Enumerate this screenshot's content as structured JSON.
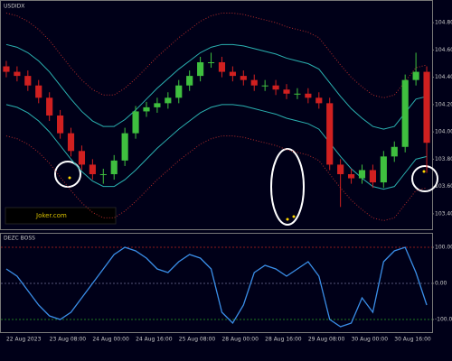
{
  "chart_data": [
    {
      "type": "candlestick",
      "title": "USDIDX",
      "watermark": "Joker.com",
      "categories": [
        "22 Aug 2023",
        null,
        null,
        null,
        "23 Aug 08:00",
        null,
        null,
        null,
        "24 Aug 00:00",
        null,
        null,
        null,
        "24 Aug 16:00",
        null,
        null,
        null,
        "25 Aug 08:00",
        null,
        null,
        null,
        "28 Aug 00:00",
        null,
        null,
        null,
        "28 Aug 16:00",
        null,
        null,
        null,
        "29 Aug 08:00",
        null,
        null,
        null,
        "30 Aug 00:00",
        null,
        null,
        null,
        "30 Aug 16:00",
        null,
        null,
        null
      ],
      "opens": [
        104.48,
        104.44,
        104.41,
        104.34,
        104.25,
        104.12,
        103.99,
        103.86,
        103.76,
        103.69,
        103.69,
        103.79,
        103.99,
        104.15,
        104.18,
        104.21,
        104.25,
        104.34,
        104.41,
        104.51,
        104.51,
        104.44,
        104.41,
        104.38,
        104.34,
        104.34,
        104.31,
        104.28,
        104.28,
        104.25,
        104.21,
        103.76,
        103.69,
        103.66,
        103.72,
        103.63,
        103.82,
        103.89,
        104.38,
        104.44
      ],
      "highs": [
        104.52,
        104.48,
        104.45,
        104.38,
        104.29,
        104.16,
        104.03,
        103.9,
        103.8,
        103.73,
        103.83,
        104.03,
        104.19,
        104.22,
        104.25,
        104.29,
        104.38,
        104.45,
        104.55,
        104.58,
        104.55,
        104.48,
        104.45,
        104.42,
        104.38,
        104.38,
        104.35,
        104.32,
        104.32,
        104.29,
        104.25,
        103.8,
        103.73,
        103.76,
        103.76,
        103.86,
        103.93,
        104.42,
        104.58,
        104.48
      ],
      "lows": [
        104.4,
        104.37,
        104.3,
        104.21,
        104.08,
        103.95,
        103.82,
        103.72,
        103.65,
        103.62,
        103.65,
        103.75,
        103.95,
        104.11,
        104.14,
        104.17,
        104.21,
        104.3,
        104.37,
        104.47,
        104.4,
        104.37,
        104.34,
        104.3,
        104.3,
        104.27,
        104.24,
        104.24,
        104.21,
        104.17,
        103.72,
        103.45,
        103.62,
        103.62,
        103.59,
        103.59,
        103.78,
        103.85,
        104.34,
        103.7
      ],
      "closes": [
        104.44,
        104.41,
        104.34,
        104.25,
        104.12,
        103.99,
        103.86,
        103.76,
        103.69,
        103.69,
        103.79,
        103.99,
        104.15,
        104.18,
        104.21,
        104.25,
        104.34,
        104.41,
        104.51,
        104.51,
        104.44,
        104.41,
        104.38,
        104.34,
        104.34,
        104.31,
        104.28,
        104.28,
        104.25,
        104.21,
        103.76,
        103.69,
        103.66,
        103.72,
        103.63,
        103.82,
        103.89,
        104.38,
        104.44,
        103.92
      ],
      "up_color": "#3fbf3f",
      "down_color": "#d02020",
      "series": [
        {
          "color": "#2ab0b0",
          "style": "solid",
          "values": [
            104.64,
            104.62,
            104.58,
            104.52,
            104.44,
            104.34,
            104.24,
            104.15,
            104.08,
            104.04,
            104.04,
            104.09,
            104.16,
            104.24,
            104.32,
            104.39,
            104.46,
            104.52,
            104.58,
            104.62,
            104.64,
            104.64,
            104.63,
            104.61,
            104.59,
            104.57,
            104.54,
            104.52,
            104.5,
            104.46,
            104.36,
            104.26,
            104.17,
            104.1,
            104.04,
            104.02,
            104.04,
            104.14,
            104.24,
            104.26
          ]
        },
        {
          "color": "#2ab0b0",
          "style": "solid",
          "values": [
            104.2,
            104.18,
            104.14,
            104.08,
            104.0,
            103.9,
            103.8,
            103.71,
            103.64,
            103.6,
            103.6,
            103.65,
            103.72,
            103.8,
            103.88,
            103.95,
            104.02,
            104.08,
            104.14,
            104.18,
            104.2,
            104.2,
            104.19,
            104.17,
            104.15,
            104.13,
            104.1,
            104.08,
            104.06,
            104.02,
            103.92,
            103.82,
            103.73,
            103.66,
            103.6,
            103.58,
            103.6,
            103.7,
            103.8,
            103.82
          ]
        },
        {
          "color": "#b02a2a",
          "style": "dotted",
          "values": [
            104.87,
            104.85,
            104.81,
            104.75,
            104.67,
            104.57,
            104.47,
            104.38,
            104.31,
            104.27,
            104.27,
            104.32,
            104.39,
            104.47,
            104.55,
            104.62,
            104.69,
            104.75,
            104.81,
            104.85,
            104.87,
            104.87,
            104.86,
            104.84,
            104.82,
            104.8,
            104.77,
            104.75,
            104.73,
            104.69,
            104.59,
            104.49,
            104.4,
            104.33,
            104.27,
            104.25,
            104.27,
            104.37,
            104.47,
            104.49
          ]
        },
        {
          "color": "#b02a2a",
          "style": "dotted",
          "values": [
            103.97,
            103.95,
            103.91,
            103.85,
            103.77,
            103.67,
            103.57,
            103.48,
            103.41,
            103.37,
            103.37,
            103.42,
            103.49,
            103.57,
            103.65,
            103.72,
            103.79,
            103.85,
            103.91,
            103.95,
            103.97,
            103.97,
            103.96,
            103.94,
            103.92,
            103.9,
            103.87,
            103.85,
            103.83,
            103.79,
            103.69,
            103.59,
            103.5,
            103.43,
            103.37,
            103.35,
            103.37,
            103.47,
            103.57,
            103.59
          ]
        }
      ],
      "ylim": [
        103.3,
        104.9
      ],
      "yticks": [
        {
          "value": 103.4,
          "label": "103.40"
        },
        {
          "value": 103.6,
          "label": "103.60"
        },
        {
          "value": 103.8,
          "label": "103.80"
        },
        {
          "value": 104.0,
          "label": "104.00"
        },
        {
          "value": 104.2,
          "label": "104.20"
        },
        {
          "value": 104.4,
          "label": "104.40"
        },
        {
          "value": 104.6,
          "label": "104.60"
        },
        {
          "value": 104.8,
          "label": "104.80"
        }
      ],
      "grid": false
    },
    {
      "type": "line",
      "title": "DEZC BOSS",
      "series": [
        {
          "color": "#3a8ee8",
          "values": [
            40,
            20,
            -20,
            -60,
            -90,
            -100,
            -80,
            -40,
            0,
            40,
            80,
            100,
            90,
            70,
            40,
            30,
            60,
            80,
            70,
            40,
            -80,
            -110,
            -60,
            30,
            50,
            40,
            20,
            40,
            60,
            20,
            -100,
            -120,
            -110,
            -40,
            -80,
            60,
            90,
            100,
            30,
            -60
          ]
        }
      ],
      "ylim": [
        -130,
        130
      ],
      "yticks": [
        {
          "value": -100,
          "label": "-100.00"
        },
        {
          "value": 0,
          "label": "0.00"
        },
        {
          "value": 100,
          "label": "100.00"
        }
      ],
      "tick_colors": [
        "#1f7a1f",
        "#555577",
        "#8b1a1a"
      ],
      "grid": true
    }
  ]
}
